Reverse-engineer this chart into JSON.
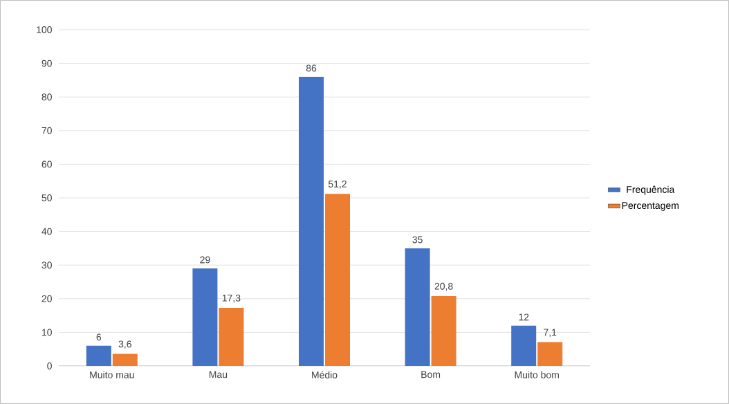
{
  "chart_data": {
    "type": "bar",
    "categories": [
      "Muito mau",
      "Mau",
      "Médio",
      "Bom",
      "Muito bom"
    ],
    "series": [
      {
        "name": "Frequência",
        "color": "#4472c4",
        "values": [
          6,
          29,
          86,
          35,
          12
        ],
        "value_labels": [
          "6",
          "29",
          "86",
          "35",
          "12"
        ]
      },
      {
        "name": "Percentagem",
        "color": "#ed7d31",
        "values": [
          3.6,
          17.3,
          51.2,
          20.8,
          7.1
        ],
        "value_labels": [
          "3,6",
          "17,3",
          "51,2",
          "20,8",
          "7,1"
        ]
      }
    ],
    "ylim": [
      0,
      100
    ],
    "yticks": [
      0,
      10,
      20,
      30,
      40,
      50,
      60,
      70,
      80,
      90,
      100
    ],
    "grid": "y",
    "legend": "right"
  }
}
